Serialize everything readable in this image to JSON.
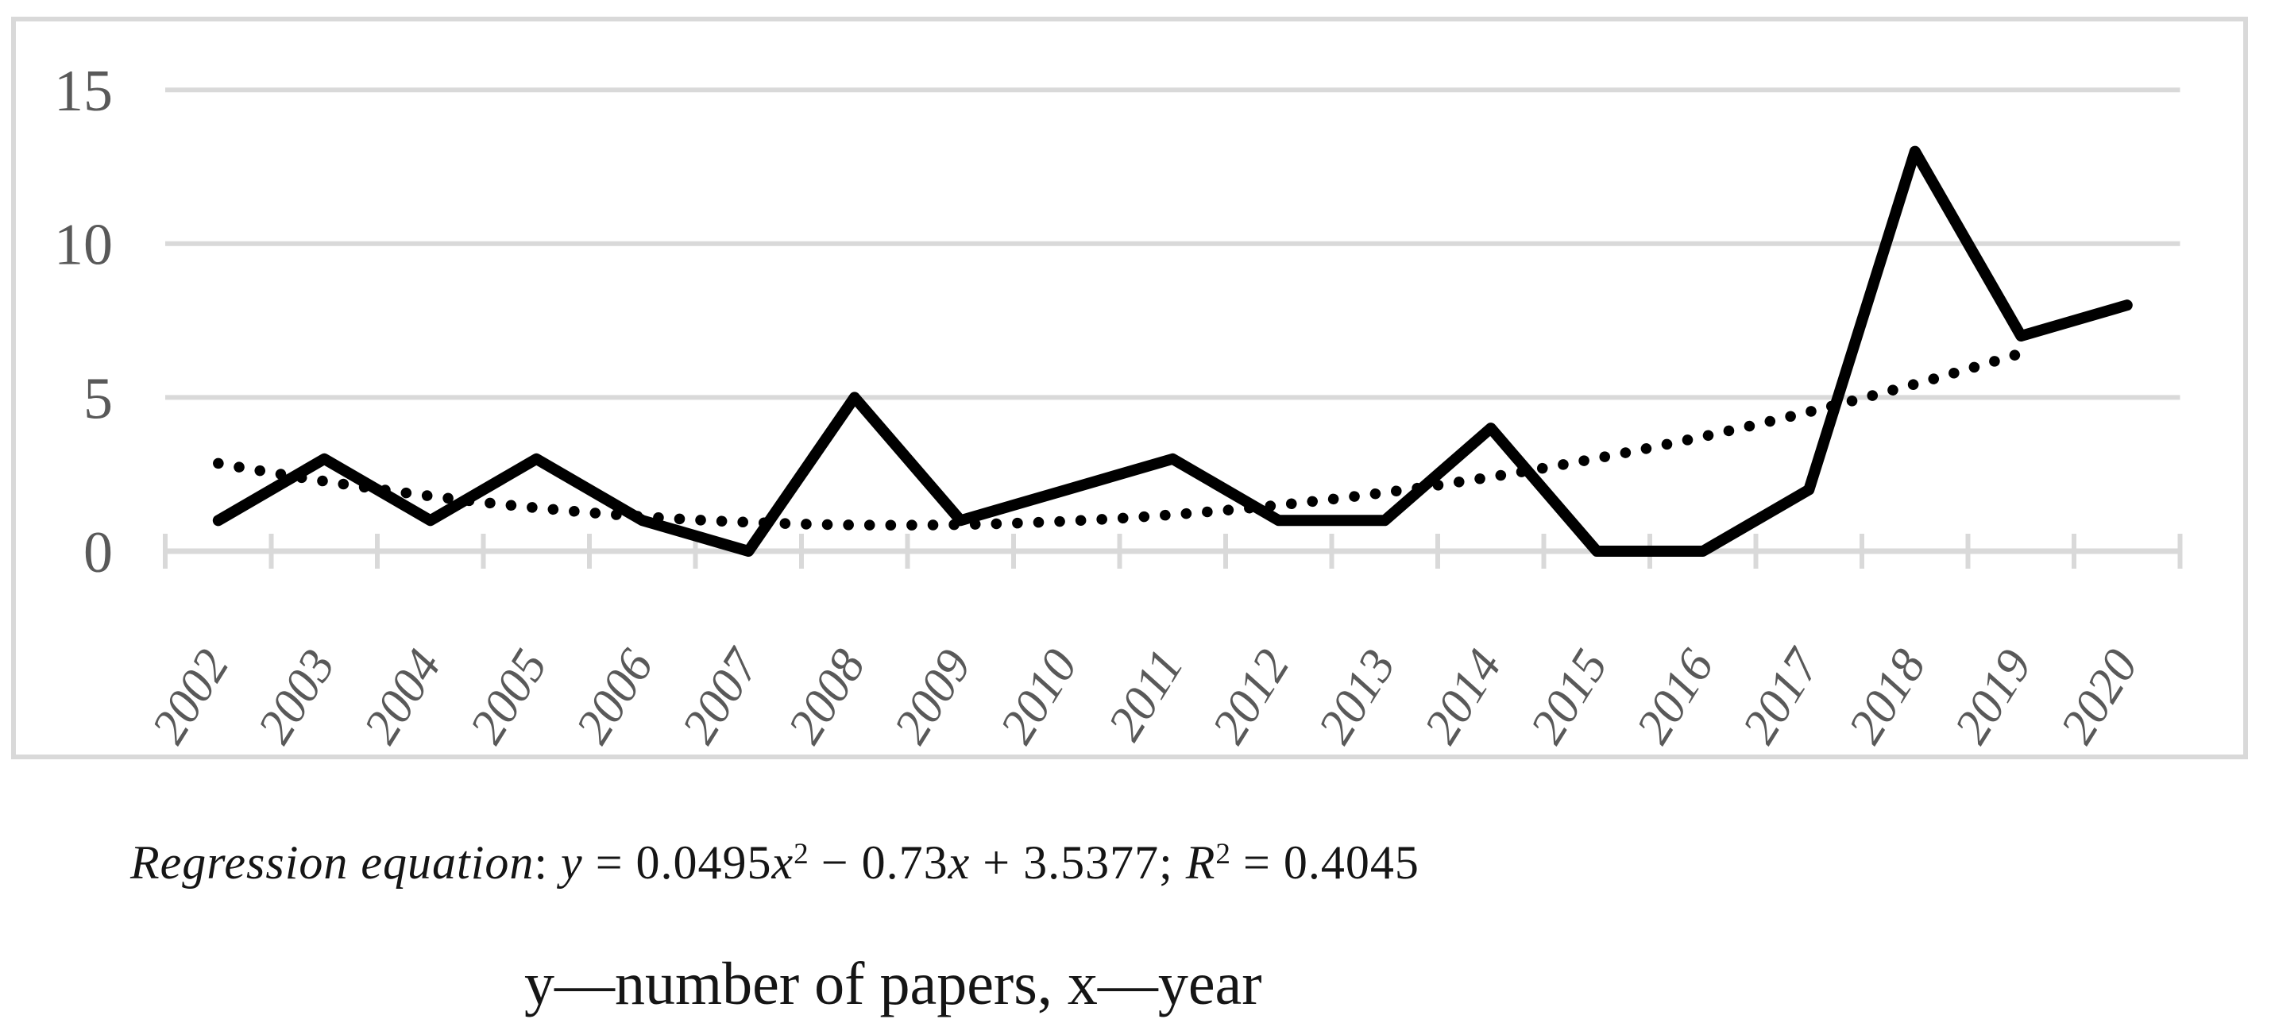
{
  "chart_data": {
    "type": "line",
    "title": "",
    "categories": [
      "2002",
      "2003",
      "2004",
      "2005",
      "2006",
      "2007",
      "2008",
      "2009",
      "2010",
      "2011",
      "2012",
      "2013",
      "2014",
      "2015",
      "2016",
      "2017",
      "2018",
      "2019",
      "2020"
    ],
    "series": [
      {
        "name": "number of papers",
        "style": "solid",
        "values": [
          1,
          3,
          1,
          3,
          1,
          0,
          5,
          1,
          2,
          3,
          1,
          1,
          4,
          0,
          0,
          2,
          13,
          7,
          8
        ]
      },
      {
        "name": "polynomial trendline",
        "style": "dotted",
        "trend": {
          "a": 0.0495,
          "b": -0.73,
          "c": 3.5377,
          "x_start": 1,
          "x_end": 18
        }
      }
    ],
    "xlabel": "year",
    "ylabel": "number of papers",
    "yticks": [
      0,
      5,
      10,
      15
    ],
    "ylim": [
      0,
      15.5
    ],
    "grid": "horizontal",
    "legend": "none",
    "colors": {
      "series": "#000000",
      "grid": "#d9d9d9",
      "frame": "#d9d9d9",
      "tick_label": "#595959"
    }
  },
  "caption": {
    "equation_parts": [
      {
        "t": "Regression equation",
        "style": "italic"
      },
      {
        "t": ": ",
        "style": "normal"
      },
      {
        "t": "y",
        "style": "italic"
      },
      {
        "t": " = 0.0495",
        "style": "normal"
      },
      {
        "t": "x",
        "style": "italic"
      },
      {
        "t": "2",
        "style": "sup"
      },
      {
        "t": " − 0.73",
        "style": "normal"
      },
      {
        "t": "x",
        "style": "italic"
      },
      {
        "t": " + 3.5377; ",
        "style": "normal"
      },
      {
        "t": "R",
        "style": "italic"
      },
      {
        "t": "2",
        "style": "sup"
      },
      {
        "t": " = 0.4045",
        "style": "normal"
      }
    ],
    "note": "y—number of papers, x—year"
  }
}
